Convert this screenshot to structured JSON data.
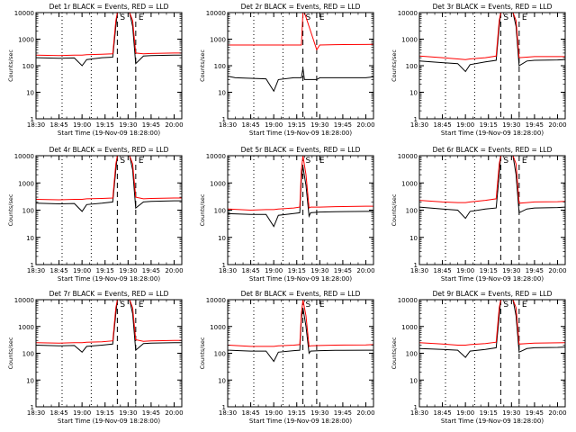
{
  "chart_data": [
    {
      "type": "line",
      "title": "Det 1r BLACK = Events, RED = LLD",
      "xlabel": "Start Time (19-Nov-09 18:28:00)",
      "ylabel": "Counts/sec",
      "yscale": "log",
      "ylim": [
        1,
        10000
      ],
      "xlim": [
        "18:30",
        "20:05"
      ],
      "x_ticks": [
        "18:30",
        "18:45",
        "19:00",
        "19:15",
        "19:30",
        "19:45",
        "20:00"
      ],
      "y_ticks": [
        "1",
        "10",
        "100",
        "1000",
        "10000"
      ],
      "markers": [
        {
          "label": "S",
          "time": "19:23"
        },
        {
          "label": "E",
          "time": "19:35"
        }
      ],
      "dotted_lines": [
        "18:47",
        "19:06"
      ],
      "x": [
        "18:30",
        "18:45",
        "18:55",
        "19:00",
        "19:03",
        "19:13",
        "19:20",
        "19:22",
        "19:23",
        "19:31",
        "19:33",
        "19:35",
        "19:40",
        "19:45",
        "20:00",
        "20:05"
      ],
      "series": [
        {
          "color": "#000000",
          "values": [
            200,
            190,
            195,
            100,
            170,
            200,
            210,
            3000,
            10000,
            10000,
            3000,
            120,
            230,
            240,
            250,
            250
          ]
        },
        {
          "color": "#ff0000",
          "values": [
            250,
            240,
            250,
            250,
            260,
            270,
            280,
            5000,
            10000,
            10000,
            5000,
            300,
            280,
            290,
            300,
            300
          ]
        }
      ]
    },
    {
      "type": "line",
      "title": "Det 2r BLACK = Events, RED = LLD",
      "xlabel": "Start Time (19-Nov-09 18:28:00)",
      "ylabel": "Counts/sec",
      "yscale": "log",
      "ylim": [
        1,
        10000
      ],
      "xlim": [
        "18:30",
        "20:05"
      ],
      "x_ticks": [
        "18:30",
        "18:45",
        "19:00",
        "19:15",
        "19:30",
        "19:45",
        "20:00"
      ],
      "y_ticks": [
        "1",
        "10",
        "100",
        "1000",
        "10000"
      ],
      "markers": [
        {
          "label": "S",
          "time": "19:19"
        },
        {
          "label": "E",
          "time": "19:28"
        }
      ],
      "dotted_lines": [
        "18:47",
        "19:06"
      ],
      "x": [
        "18:30",
        "18:35",
        "18:55",
        "19:00",
        "19:03",
        "19:13",
        "19:18",
        "19:19",
        "19:20",
        "19:24",
        "19:28",
        "19:30",
        "19:40",
        "20:00",
        "20:05"
      ],
      "series": [
        {
          "color": "#000000",
          "values": [
            40,
            35,
            32,
            11,
            30,
            35,
            35,
            80,
            30,
            30,
            30,
            35,
            35,
            35,
            38
          ]
        },
        {
          "color": "#ff0000",
          "values": [
            600,
            600,
            600,
            600,
            600,
            600,
            600,
            10000,
            10000,
            2000,
            400,
            600,
            620,
            630,
            640
          ]
        }
      ]
    },
    {
      "type": "line",
      "title": "Det 3r BLACK = Events, RED = LLD",
      "xlabel": "Start Time (19-Nov-09 18:28:00)",
      "ylabel": "Counts/sec",
      "yscale": "log",
      "ylim": [
        1,
        10000
      ],
      "xlim": [
        "18:30",
        "20:05"
      ],
      "x_ticks": [
        "18:30",
        "18:45",
        "19:00",
        "19:15",
        "19:30",
        "19:45",
        "20:00"
      ],
      "y_ticks": [
        "1",
        "10",
        "100",
        "1000",
        "10000"
      ],
      "markers": [
        {
          "label": "S",
          "time": "19:23"
        },
        {
          "label": "E",
          "time": "19:35"
        }
      ],
      "dotted_lines": [
        "18:47",
        "19:06"
      ],
      "x": [
        "18:30",
        "18:45",
        "18:55",
        "19:00",
        "19:03",
        "19:13",
        "19:20",
        "19:22",
        "19:23",
        "19:31",
        "19:33",
        "19:35",
        "19:40",
        "19:45",
        "20:00",
        "20:05"
      ],
      "series": [
        {
          "color": "#000000",
          "values": [
            150,
            130,
            120,
            60,
            110,
            140,
            160,
            3000,
            10000,
            10000,
            3000,
            100,
            150,
            160,
            165,
            170
          ]
        },
        {
          "color": "#ff0000",
          "values": [
            230,
            200,
            180,
            170,
            180,
            200,
            230,
            5000,
            10000,
            10000,
            5000,
            200,
            210,
            220,
            220,
            220
          ]
        }
      ]
    },
    {
      "type": "line",
      "title": "Det 4r BLACK = Events, RED = LLD",
      "xlabel": "Start Time (19-Nov-09 18:28:00)",
      "ylabel": "Counts/sec",
      "yscale": "log",
      "ylim": [
        1,
        10000
      ],
      "xlim": [
        "18:30",
        "20:05"
      ],
      "x_ticks": [
        "18:30",
        "18:45",
        "19:00",
        "19:15",
        "19:30",
        "19:45",
        "20:00"
      ],
      "y_ticks": [
        "1",
        "10",
        "100",
        "1000",
        "10000"
      ],
      "markers": [
        {
          "label": "S",
          "time": "19:23"
        },
        {
          "label": "E",
          "time": "19:35"
        }
      ],
      "dotted_lines": [
        "18:47",
        "19:06"
      ],
      "x": [
        "18:30",
        "18:45",
        "18:55",
        "19:00",
        "19:03",
        "19:13",
        "19:20",
        "19:22",
        "19:23",
        "19:31",
        "19:33",
        "19:35",
        "19:40",
        "19:45",
        "20:00",
        "20:05"
      ],
      "series": [
        {
          "color": "#000000",
          "values": [
            180,
            170,
            175,
            90,
            160,
            180,
            200,
            3000,
            10000,
            10000,
            3000,
            120,
            200,
            210,
            220,
            220
          ]
        },
        {
          "color": "#ff0000",
          "values": [
            250,
            240,
            250,
            250,
            260,
            270,
            280,
            5000,
            10000,
            10000,
            5000,
            300,
            260,
            270,
            280,
            280
          ]
        }
      ]
    },
    {
      "type": "line",
      "title": "Det 5r BLACK = Events, RED = LLD",
      "xlabel": "Start Time (19-Nov-09 18:28:00)",
      "ylabel": "Counts/sec",
      "yscale": "log",
      "ylim": [
        1,
        10000
      ],
      "xlim": [
        "18:30",
        "20:05"
      ],
      "x_ticks": [
        "18:30",
        "18:45",
        "19:00",
        "19:15",
        "19:30",
        "19:45",
        "20:00"
      ],
      "y_ticks": [
        "1",
        "10",
        "100",
        "1000",
        "10000"
      ],
      "markers": [
        {
          "label": "S",
          "time": "19:19"
        },
        {
          "label": "E",
          "time": "19:28"
        }
      ],
      "dotted_lines": [
        "18:47",
        "19:06"
      ],
      "x": [
        "18:30",
        "18:45",
        "18:55",
        "19:00",
        "19:03",
        "19:13",
        "19:17",
        "19:18",
        "19:19",
        "19:21",
        "19:23",
        "19:24",
        "19:30",
        "19:40",
        "20:00",
        "20:05"
      ],
      "series": [
        {
          "color": "#000000",
          "values": [
            75,
            70,
            70,
            25,
            65,
            75,
            80,
            1500,
            4000,
            800,
            60,
            80,
            85,
            88,
            90,
            90
          ]
        },
        {
          "color": "#ff0000",
          "values": [
            110,
            100,
            105,
            105,
            110,
            120,
            130,
            3000,
            10000,
            2000,
            120,
            130,
            130,
            135,
            140,
            140
          ]
        }
      ]
    },
    {
      "type": "line",
      "title": "Det 6r BLACK = Events, RED = LLD",
      "xlabel": "Start Time (19-Nov-09 18:28:00)",
      "ylabel": "Counts/sec",
      "yscale": "log",
      "ylim": [
        1,
        10000
      ],
      "xlim": [
        "18:30",
        "20:05"
      ],
      "x_ticks": [
        "18:30",
        "18:45",
        "19:00",
        "19:15",
        "19:30",
        "19:45",
        "20:00"
      ],
      "y_ticks": [
        "1",
        "10",
        "100",
        "1000",
        "10000"
      ],
      "markers": [
        {
          "label": "S",
          "time": "19:23"
        },
        {
          "label": "E",
          "time": "19:35"
        }
      ],
      "dotted_lines": [
        "18:47",
        "19:06"
      ],
      "x": [
        "18:30",
        "18:45",
        "18:55",
        "19:00",
        "19:03",
        "19:13",
        "19:20",
        "19:22",
        "19:23",
        "19:31",
        "19:33",
        "19:35",
        "19:40",
        "19:45",
        "20:00",
        "20:05"
      ],
      "series": [
        {
          "color": "#000000",
          "values": [
            130,
            110,
            100,
            50,
            90,
            110,
            120,
            2000,
            10000,
            10000,
            2000,
            80,
            110,
            120,
            125,
            130
          ]
        },
        {
          "color": "#ff0000",
          "values": [
            230,
            200,
            190,
            190,
            200,
            230,
            260,
            5000,
            10000,
            10000,
            5000,
            180,
            190,
            200,
            205,
            210
          ]
        }
      ]
    },
    {
      "type": "line",
      "title": "Det 7r BLACK = Events, RED = LLD",
      "xlabel": "Start Time (19-Nov-09 18:28:00)",
      "ylabel": "Counts/sec",
      "yscale": "log",
      "ylim": [
        1,
        10000
      ],
      "xlim": [
        "18:30",
        "20:05"
      ],
      "x_ticks": [
        "18:30",
        "18:45",
        "19:00",
        "19:15",
        "19:30",
        "19:45",
        "20:00"
      ],
      "y_ticks": [
        "1",
        "10",
        "100",
        "1000",
        "10000"
      ],
      "markers": [
        {
          "label": "S",
          "time": "19:23"
        },
        {
          "label": "E",
          "time": "19:35"
        }
      ],
      "dotted_lines": [
        "18:47",
        "19:06"
      ],
      "x": [
        "18:30",
        "18:45",
        "18:55",
        "19:00",
        "19:03",
        "19:13",
        "19:20",
        "19:22",
        "19:23",
        "19:31",
        "19:33",
        "19:35",
        "19:40",
        "19:45",
        "20:00",
        "20:05"
      ],
      "series": [
        {
          "color": "#000000",
          "values": [
            200,
            190,
            195,
            110,
            180,
            200,
            220,
            3000,
            10000,
            10000,
            3000,
            130,
            230,
            240,
            250,
            250
          ]
        },
        {
          "color": "#ff0000",
          "values": [
            250,
            240,
            250,
            250,
            260,
            270,
            290,
            5000,
            10000,
            10000,
            5000,
            320,
            280,
            290,
            300,
            300
          ]
        }
      ]
    },
    {
      "type": "line",
      "title": "Det 8r BLACK = Events, RED = LLD",
      "xlabel": "Start Time (19-Nov-09 18:28:00)",
      "ylabel": "Counts/sec",
      "yscale": "log",
      "ylim": [
        1,
        10000
      ],
      "xlim": [
        "18:30",
        "20:05"
      ],
      "x_ticks": [
        "18:30",
        "18:45",
        "19:00",
        "19:15",
        "19:30",
        "19:45",
        "20:00"
      ],
      "y_ticks": [
        "1",
        "10",
        "100",
        "1000",
        "10000"
      ],
      "markers": [
        {
          "label": "S",
          "time": "19:19"
        },
        {
          "label": "E",
          "time": "19:28"
        }
      ],
      "dotted_lines": [
        "18:47",
        "19:06"
      ],
      "x": [
        "18:30",
        "18:45",
        "18:55",
        "19:00",
        "19:03",
        "19:13",
        "19:17",
        "19:18",
        "19:19",
        "19:21",
        "19:23",
        "19:24",
        "19:30",
        "19:40",
        "20:00",
        "20:05"
      ],
      "series": [
        {
          "color": "#000000",
          "values": [
            130,
            120,
            120,
            50,
            110,
            125,
            130,
            2000,
            5000,
            1000,
            100,
            120,
            125,
            128,
            130,
            130
          ]
        },
        {
          "color": "#ff0000",
          "values": [
            200,
            180,
            180,
            180,
            190,
            200,
            210,
            3000,
            10000,
            2500,
            180,
            190,
            195,
            200,
            205,
            210
          ]
        }
      ]
    },
    {
      "type": "line",
      "title": "Det 9r BLACK = Events, RED = LLD",
      "xlabel": "Start Time (19-Nov-09 18:28:00)",
      "ylabel": "Counts/sec",
      "yscale": "log",
      "ylim": [
        1,
        10000
      ],
      "xlim": [
        "18:30",
        "20:05"
      ],
      "x_ticks": [
        "18:30",
        "18:45",
        "19:00",
        "19:15",
        "19:30",
        "19:45",
        "20:00"
      ],
      "y_ticks": [
        "1",
        "10",
        "100",
        "1000",
        "10000"
      ],
      "markers": [
        {
          "label": "S",
          "time": "19:23"
        },
        {
          "label": "E",
          "time": "19:35"
        }
      ],
      "dotted_lines": [
        "18:47",
        "19:06"
      ],
      "x": [
        "18:30",
        "18:45",
        "18:55",
        "19:00",
        "19:03",
        "19:13",
        "19:20",
        "19:22",
        "19:23",
        "19:31",
        "19:33",
        "19:35",
        "19:40",
        "19:45",
        "20:00",
        "20:05"
      ],
      "series": [
        {
          "color": "#000000",
          "values": [
            150,
            140,
            130,
            70,
            120,
            140,
            160,
            2500,
            10000,
            10000,
            2500,
            110,
            150,
            160,
            165,
            170
          ]
        },
        {
          "color": "#ff0000",
          "values": [
            250,
            220,
            200,
            200,
            210,
            230,
            260,
            5000,
            10000,
            10000,
            5000,
            220,
            230,
            240,
            245,
            250
          ]
        }
      ]
    }
  ]
}
